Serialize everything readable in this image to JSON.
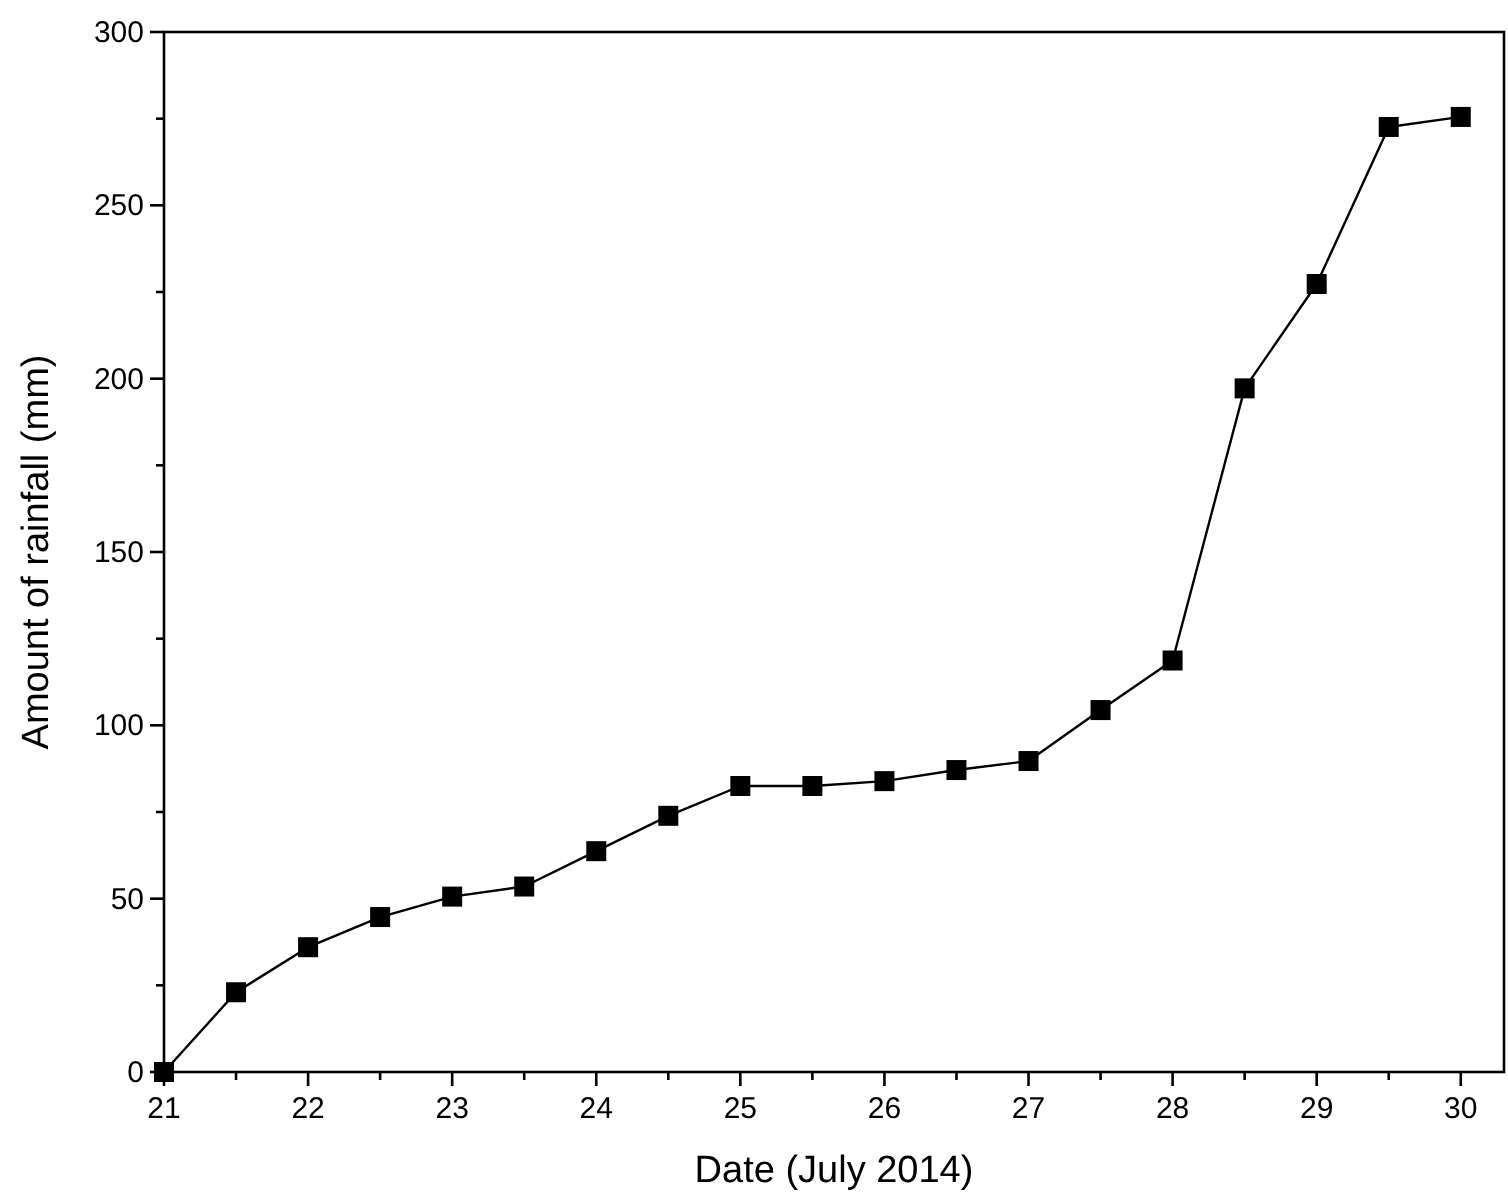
{
  "chart_data": {
    "type": "line",
    "xlabel": "Date (July 2014)",
    "ylabel": "Amount of rainfall (mm)",
    "x": [
      21,
      21.5,
      22,
      22.5,
      23,
      23.5,
      24,
      24.5,
      25,
      25.5,
      26,
      26.5,
      27,
      27.5,
      28,
      28.5,
      29,
      29.5,
      30
    ],
    "series": [
      {
        "color": "#000000",
        "values": [
          0,
          23,
          36,
          44.7,
          50.6,
          53.5,
          63.7,
          73.9,
          82.5,
          82.5,
          83.9,
          87.1,
          89.7,
          104.4,
          118.7,
          197.2,
          227.3,
          272.6,
          275.5
        ]
      }
    ],
    "xlim": [
      21,
      30.3
    ],
    "ylim": [
      0,
      300
    ],
    "xticks": [
      21,
      {
        "value": 21.5,
        "label": null
      },
      22,
      {
        "value": 22.5,
        "label": null
      },
      23,
      {
        "value": 23.5,
        "label": null
      },
      24,
      {
        "value": 24.5,
        "label": null
      },
      25,
      {
        "value": 25.5,
        "label": null
      },
      26,
      {
        "value": 26.5,
        "label": null
      },
      27,
      {
        "value": 27.5,
        "label": null
      },
      28,
      {
        "value": 28.5,
        "label": null
      },
      29,
      {
        "value": 29.5,
        "label": null
      },
      30
    ],
    "yticks": [
      0,
      {
        "value": 25,
        "label": null
      },
      50,
      {
        "value": 75,
        "label": null
      },
      100,
      {
        "value": 125,
        "label": null
      },
      150,
      {
        "value": 175,
        "label": null
      },
      200,
      {
        "value": 225,
        "label": null
      },
      250,
      {
        "value": 275,
        "label": null
      },
      300
    ],
    "marker": "square",
    "line_style": "solid"
  }
}
